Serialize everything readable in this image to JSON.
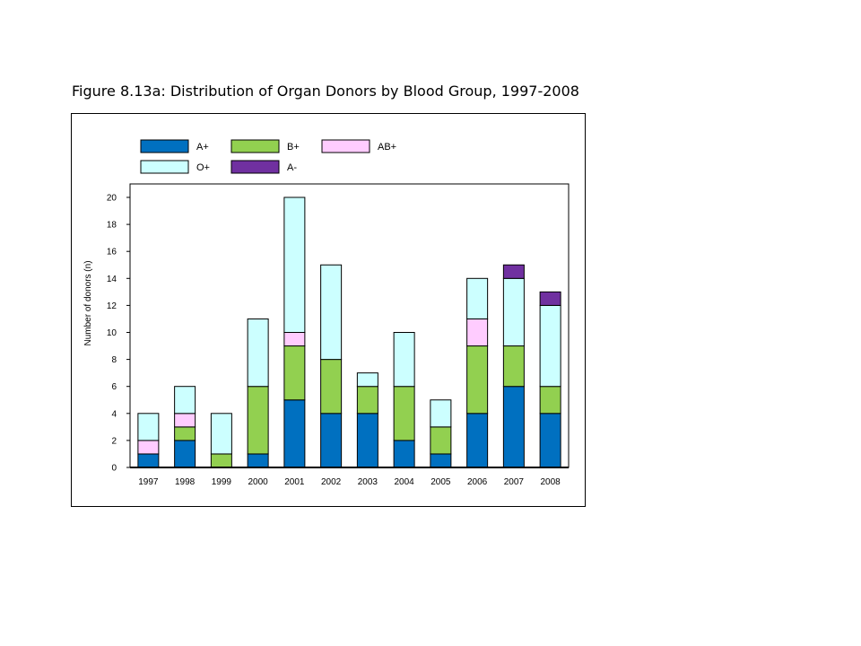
{
  "figure": {
    "title": "Figure 8.13a: Distribution of Organ Donors by Blood Group, 1997-2008"
  },
  "chart_data": {
    "type": "bar",
    "stacked": true,
    "title": "Figure 8.13a: Distribution of Organ Donors by Blood Group, 1997-2008",
    "xlabel": "",
    "ylabel": "Number of donors (n)",
    "ylim": [
      0,
      20
    ],
    "yticks": [
      0,
      2,
      4,
      6,
      8,
      10,
      12,
      14,
      16,
      18,
      20
    ],
    "grid": false,
    "legend_position": "top",
    "categories": [
      "1997",
      "1998",
      "1999",
      "2000",
      "2001",
      "2002",
      "2003",
      "2004",
      "2005",
      "2006",
      "2007",
      "2008"
    ],
    "series": [
      {
        "name": "A+",
        "color": "#0070C0",
        "values": [
          1,
          2,
          0,
          1,
          5,
          4,
          4,
          2,
          1,
          4,
          6,
          4
        ]
      },
      {
        "name": "B+",
        "color": "#92D050",
        "values": [
          0,
          1,
          1,
          5,
          4,
          4,
          2,
          4,
          2,
          5,
          3,
          2
        ]
      },
      {
        "name": "AB+",
        "color": "#FFCCFF",
        "values": [
          1,
          1,
          0,
          0,
          1,
          0,
          0,
          0,
          0,
          2,
          0,
          0
        ]
      },
      {
        "name": "O+",
        "color": "#CCFFFF",
        "values": [
          2,
          2,
          3,
          5,
          10,
          7,
          1,
          4,
          2,
          3,
          5,
          6
        ]
      },
      {
        "name": "A-",
        "color": "#7030A0",
        "values": [
          0,
          0,
          0,
          0,
          0,
          0,
          0,
          0,
          0,
          0,
          1,
          1
        ]
      }
    ]
  }
}
